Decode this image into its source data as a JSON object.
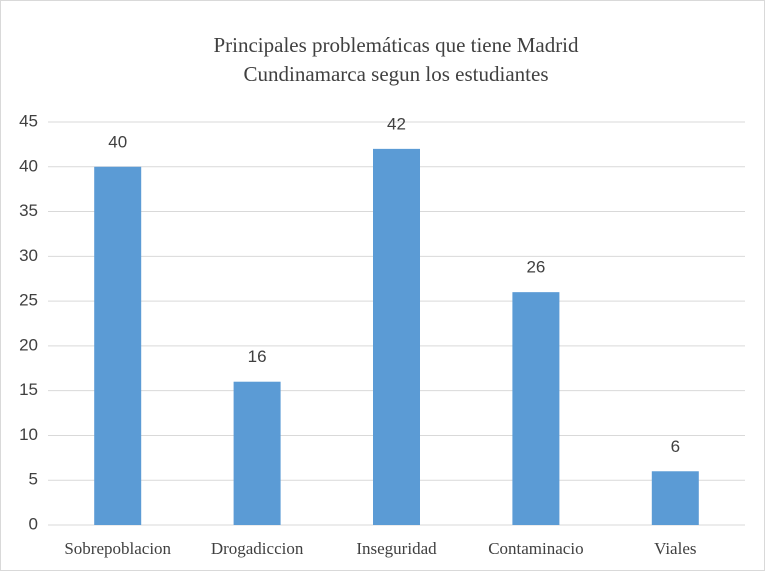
{
  "chart_data": {
    "type": "bar",
    "title": [
      "Principales problemáticas que tiene Madrid",
      "Cundinamarca segun los estudiantes"
    ],
    "categories": [
      "Sobrepoblacion",
      "Drogadiccion",
      "Inseguridad",
      "Contaminacio",
      "Viales"
    ],
    "values": [
      40,
      16,
      42,
      26,
      6
    ],
    "color": "#5b9bd5",
    "ylim": [
      0,
      45
    ],
    "yticks": [
      0,
      5,
      10,
      15,
      20,
      25,
      30,
      35,
      40,
      45
    ],
    "grid": true
  }
}
